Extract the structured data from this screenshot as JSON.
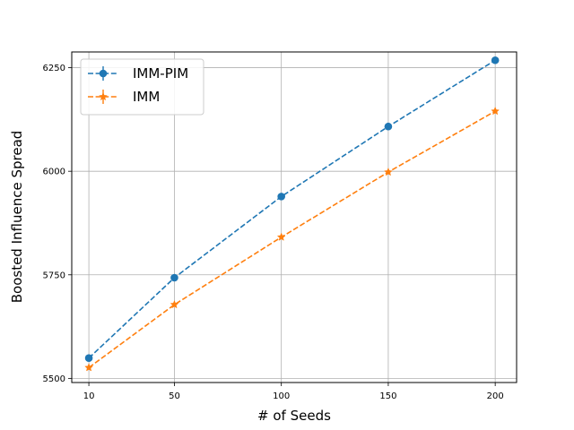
{
  "chart_data": {
    "type": "line",
    "xlabel": "# of Seeds",
    "ylabel": "Boosted Influence Spread",
    "x_ticks": [
      10,
      50,
      100,
      150,
      200
    ],
    "y_ticks": [
      5500,
      5750,
      6000,
      6250
    ],
    "xlim": [
      2,
      210
    ],
    "ylim": [
      5490,
      6288
    ],
    "grid": true,
    "legend_position": "top-left",
    "x": [
      10,
      50,
      100,
      150,
      200
    ],
    "series": [
      {
        "name": "IMM-PIM",
        "values": [
          5549,
          5743,
          5939,
          6108,
          6268
        ],
        "color": "#1f77b4",
        "marker": "circle",
        "line_style": "dashed"
      },
      {
        "name": "IMM",
        "values": [
          5526,
          5678,
          5841,
          5998,
          6145
        ],
        "color": "#ff7f0e",
        "marker": "star",
        "line_style": "dashed"
      }
    ]
  }
}
